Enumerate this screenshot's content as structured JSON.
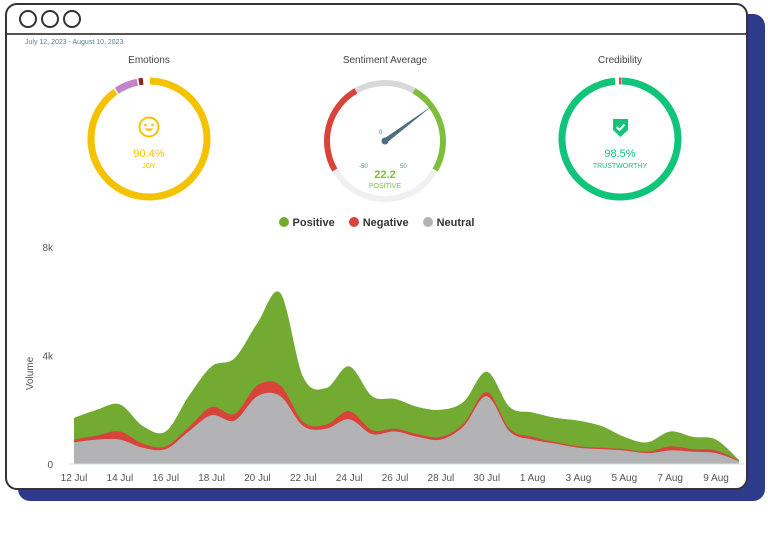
{
  "date_range": "July 12, 2023 - August 10, 2023",
  "emotions": {
    "title": "Emotions",
    "value": "90.4%",
    "label": "JOY",
    "icon": "smiley-face-icon",
    "color": "#f5c200",
    "segments": [
      {
        "pct": 90.4,
        "color": "#f5c200"
      },
      {
        "pct": 6.6,
        "color": "#c584c9"
      },
      {
        "pct": 1.6,
        "color": "#8b2a10"
      }
    ]
  },
  "sentiment": {
    "title": "Sentiment Average",
    "value": "22.2",
    "label": "POSITIVE",
    "ticks": [
      "-50",
      "0",
      "50"
    ],
    "needle": 22.2,
    "colors": {
      "negative": "#d9443a",
      "neutral": "#d8d8d8",
      "positive": "#7dbf3a",
      "track": "#f0f0f0",
      "needle": "#4a6f80"
    }
  },
  "credibility": {
    "title": "Credibility",
    "value": "98.5%",
    "label": "TRUSTWORTHY",
    "icon": "shield-check-icon",
    "color": "#10c47a",
    "flag_color": "#e0504a",
    "pct": 98.5
  },
  "chart_data": {
    "type": "area",
    "stacked": true,
    "legend": "top-center",
    "ylabel": "Volume",
    "ylim": [
      0,
      8000
    ],
    "yticks": [
      "0",
      "4k",
      "8k"
    ],
    "xticks": [
      "12 Jul",
      "14 Jul",
      "16 Jul",
      "18 Jul",
      "20 Jul",
      "22 Jul",
      "24 Jul",
      "26 Jul",
      "28 Jul",
      "30 Jul",
      "1 Aug",
      "3 Aug",
      "5 Aug",
      "7 Aug",
      "9 Aug"
    ],
    "x": [
      "12 Jul",
      "13 Jul",
      "14 Jul",
      "15 Jul",
      "16 Jul",
      "17 Jul",
      "18 Jul",
      "19 Jul",
      "20 Jul",
      "21 Jul",
      "22 Jul",
      "23 Jul",
      "24 Jul",
      "25 Jul",
      "26 Jul",
      "27 Jul",
      "28 Jul",
      "29 Jul",
      "30 Jul",
      "31 Jul",
      "1 Aug",
      "2 Aug",
      "3 Aug",
      "4 Aug",
      "5 Aug",
      "6 Aug",
      "7 Aug",
      "8 Aug",
      "9 Aug",
      "10 Aug"
    ],
    "series": [
      {
        "name": "Neutral",
        "color": "#b3b3b6",
        "values": [
          800,
          900,
          900,
          600,
          550,
          1200,
          1800,
          1600,
          2500,
          2500,
          1400,
          1300,
          1650,
          1100,
          1200,
          1000,
          900,
          1400,
          2500,
          1200,
          900,
          750,
          600,
          550,
          500,
          400,
          500,
          450,
          400,
          100
        ]
      },
      {
        "name": "Negative",
        "color": "#d9443a",
        "values": [
          100,
          150,
          300,
          150,
          100,
          150,
          300,
          250,
          400,
          400,
          150,
          150,
          300,
          150,
          100,
          100,
          100,
          100,
          150,
          100,
          100,
          50,
          50,
          50,
          50,
          50,
          150,
          100,
          100,
          30
        ]
      },
      {
        "name": "Positive",
        "color": "#72aa32",
        "values": [
          800,
          950,
          1000,
          650,
          550,
          1150,
          1500,
          2050,
          2300,
          3400,
          1650,
          1350,
          1650,
          1250,
          1100,
          1000,
          1000,
          800,
          750,
          800,
          900,
          900,
          950,
          800,
          450,
          350,
          550,
          450,
          400,
          20
        ]
      }
    ]
  }
}
